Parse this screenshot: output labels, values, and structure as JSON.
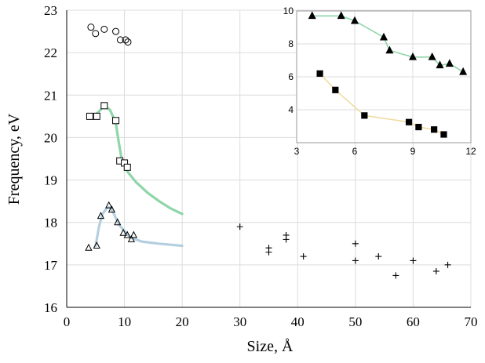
{
  "chart_data": [
    {
      "type": "scatter",
      "title": "",
      "xlabel": "Size, Å",
      "ylabel": "Frequency, eV",
      "xlim": [
        0,
        70
      ],
      "ylim": [
        16,
        23
      ],
      "xticks": [
        0,
        10,
        20,
        30,
        40,
        50,
        60,
        70
      ],
      "yticks": [
        16,
        17,
        18,
        19,
        20,
        21,
        22,
        23
      ],
      "grid": true,
      "series": [
        {
          "name": "circles",
          "marker": "circle",
          "fill": "none",
          "x": [
            4.2,
            5.0,
            6.5,
            8.5,
            9.3,
            10.2,
            10.6
          ],
          "y": [
            22.6,
            22.45,
            22.55,
            22.5,
            22.3,
            22.3,
            22.25
          ]
        },
        {
          "name": "squares",
          "marker": "square",
          "fill": "#ffffff",
          "x": [
            4.0,
            5.2,
            6.5,
            8.5,
            9.2,
            10.0,
            10.5
          ],
          "y": [
            20.5,
            20.5,
            20.75,
            20.4,
            19.45,
            19.4,
            19.3
          ]
        },
        {
          "name": "triangles",
          "marker": "triangle",
          "fill": "none",
          "x": [
            3.8,
            5.2,
            5.9,
            7.3,
            7.8,
            8.8,
            9.8,
            10.5,
            11.2,
            11.6
          ],
          "y": [
            17.4,
            17.45,
            18.15,
            18.4,
            18.3,
            18.0,
            17.75,
            17.7,
            17.6,
            17.7
          ]
        },
        {
          "name": "crosses",
          "marker": "plus",
          "fill": "none",
          "x": [
            30,
            35,
            35,
            38,
            38,
            41,
            50,
            50,
            54,
            57,
            60,
            64,
            66
          ],
          "y": [
            17.9,
            17.3,
            17.4,
            17.6,
            17.7,
            17.2,
            17.5,
            17.1,
            17.2,
            16.75,
            17.1,
            16.85,
            17.0
          ]
        }
      ],
      "curves": [
        {
          "name": "green-fit",
          "color": "#8fd6a8",
          "x": [
            4.5,
            5.5,
            6.5,
            7.5,
            8.5,
            9.0,
            9.5,
            10.5,
            12,
            14,
            16,
            18,
            20
          ],
          "y": [
            20.5,
            20.6,
            20.75,
            20.65,
            20.35,
            19.9,
            19.5,
            19.2,
            18.95,
            18.7,
            18.5,
            18.33,
            18.2
          ]
        },
        {
          "name": "blue-fit",
          "color": "#b4cfe0",
          "x": [
            5.0,
            5.6,
            6.2,
            7.0,
            7.6,
            8.2,
            9.0,
            10.0,
            11.0,
            13,
            16,
            20
          ],
          "y": [
            17.45,
            17.9,
            18.2,
            18.35,
            18.35,
            18.2,
            17.95,
            17.8,
            17.65,
            17.55,
            17.5,
            17.45
          ]
        }
      ]
    },
    {
      "type": "line",
      "title": "",
      "xlabel": "",
      "ylabel": "",
      "xlim": [
        3,
        12
      ],
      "ylim": [
        2,
        10
      ],
      "xticks": [
        3,
        6,
        9,
        12
      ],
      "yticks": [
        4,
        6,
        8,
        10
      ],
      "grid": true,
      "series": [
        {
          "name": "filled-triangles",
          "marker": "triangle",
          "color": "#8fd6a8",
          "x": [
            3.8,
            5.3,
            6.0,
            7.5,
            7.8,
            9.0,
            10.0,
            10.4,
            10.9,
            11.6
          ],
          "y": [
            9.7,
            9.7,
            9.4,
            8.4,
            7.6,
            7.2,
            7.2,
            6.7,
            6.8,
            6.3
          ]
        },
        {
          "name": "filled-squares",
          "marker": "square",
          "color": "#f0dca0",
          "x": [
            4.2,
            5.0,
            6.5,
            8.8,
            9.3,
            10.1,
            10.6
          ],
          "y": [
            6.2,
            5.2,
            3.65,
            3.25,
            2.95,
            2.8,
            2.5
          ]
        }
      ]
    }
  ]
}
